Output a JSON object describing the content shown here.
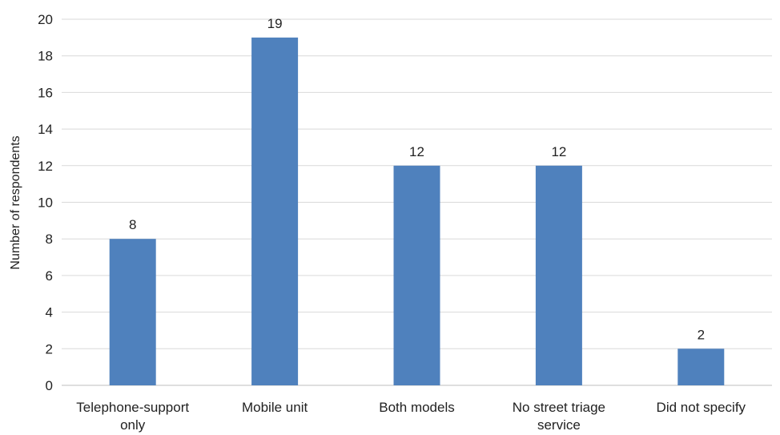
{
  "chart_data": {
    "type": "bar",
    "categories": [
      [
        "Telephone-support",
        "only"
      ],
      [
        "Mobile unit"
      ],
      [
        "Both models"
      ],
      [
        "No street triage",
        "service"
      ],
      [
        "Did not specify"
      ]
    ],
    "values": [
      8,
      19,
      12,
      12,
      2
    ],
    "data_labels": [
      "8",
      "19",
      "12",
      "12",
      "2"
    ],
    "ylabel": "Number of respondents",
    "xlabel": "",
    "title": "",
    "ylim": [
      0,
      20
    ],
    "yticks": [
      0,
      2,
      4,
      6,
      8,
      10,
      12,
      14,
      16,
      18,
      20
    ],
    "grid": true,
    "legend": "none",
    "bar_color": "#4f81bd",
    "grid_color": "#d9d9d9"
  }
}
